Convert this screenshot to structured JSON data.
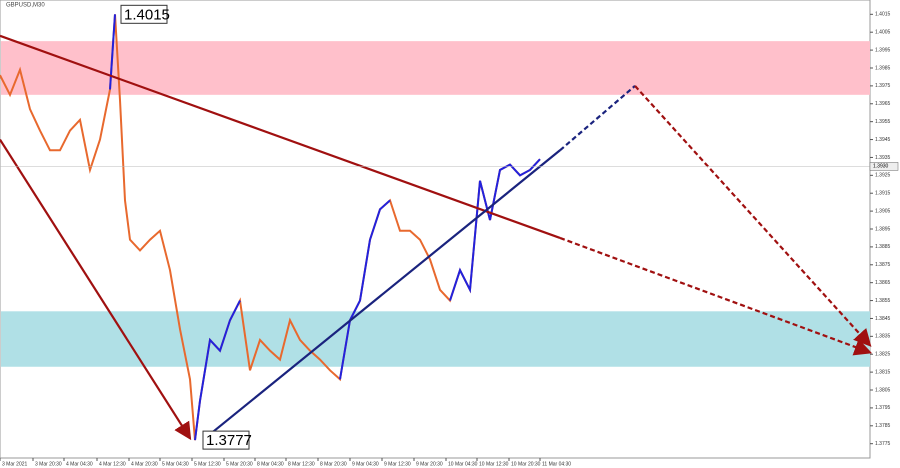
{
  "chart_data": {
    "type": "line",
    "title": "GBPUSD,M30",
    "x": [
      0,
      1,
      2,
      3,
      4,
      5,
      6,
      7,
      8,
      9,
      10,
      11,
      11.5,
      12,
      12.5,
      13,
      14,
      15,
      16,
      17,
      18,
      19,
      19.5,
      20,
      21,
      22,
      23,
      24,
      25,
      26,
      27,
      28,
      29,
      30,
      31,
      32,
      33,
      34,
      35,
      36,
      37,
      38,
      39,
      40,
      41,
      42,
      43,
      44,
      45,
      46,
      47,
      48,
      49,
      50,
      51,
      52,
      53,
      54
    ],
    "series": [
      {
        "color": "#e8692e",
        "values": [
          1.3981,
          1.397,
          1.3984,
          1.3962,
          1.395,
          1.3939,
          1.3939,
          1.395,
          1.3956,
          1.3928,
          1.3945,
          1.3973,
          1.4015,
          1.3967,
          1.3911,
          1.3889,
          1.3883,
          1.3889,
          1.3894,
          1.3872,
          1.3839,
          1.3811,
          1.3777,
          1.3799,
          1.3833,
          1.3827,
          1.3844,
          1.3855,
          1.3816,
          1.3833,
          1.3827,
          1.3822,
          1.3844,
          1.3833,
          1.3827,
          1.3822,
          1.3816,
          1.3811,
          1.3844,
          1.3855,
          1.3889,
          1.3906,
          1.3911,
          1.3894,
          1.3894,
          1.3889,
          1.3878,
          1.3861,
          1.3855,
          1.3872,
          1.3861,
          1.3922,
          1.39,
          1.3928,
          1.3931,
          1.3925,
          1.3928,
          1.3934
        ]
      },
      {
        "color": "#2222dd",
        "values": [
          null,
          null,
          null,
          null,
          null,
          null,
          null,
          null,
          null,
          null,
          null,
          1.3973,
          1.4015,
          null,
          null,
          null,
          null,
          null,
          null,
          null,
          null,
          null,
          1.3777,
          1.3799,
          1.3833,
          1.3827,
          1.3844,
          1.3855,
          null,
          null,
          null,
          null,
          null,
          null,
          null,
          null,
          null,
          1.3811,
          1.3844,
          1.3855,
          1.3889,
          1.3906,
          1.3911,
          null,
          null,
          null,
          null,
          null,
          1.3855,
          1.3872,
          1.3861,
          1.3922,
          1.39,
          1.3928,
          1.3931,
          1.3925,
          1.3928,
          1.3934
        ]
      }
    ],
    "xlim": [
      0,
      87
    ],
    "xticks": [
      {
        "value": 0,
        "label": "3 Mar 2021"
      },
      {
        "value": 3.3,
        "label": "3 Mar 20:30"
      },
      {
        "value": 6.4,
        "label": "4 Mar 04:30"
      },
      {
        "value": 9.7,
        "label": "4 Mar 12:30"
      },
      {
        "value": 12.9,
        "label": "4 Mar 20:30"
      },
      {
        "value": 16,
        "label": "5 Mar 04:30"
      },
      {
        "value": 19.2,
        "label": "5 Mar 12:30"
      },
      {
        "value": 22.4,
        "label": "5 Mar 20:30"
      },
      {
        "value": 25.5,
        "label": "8 Mar 04:30"
      },
      {
        "value": 28.6,
        "label": "8 Mar 12:30"
      },
      {
        "value": 31.8,
        "label": "8 Mar 20:30"
      },
      {
        "value": 35,
        "label": "9 Mar 04:30"
      },
      {
        "value": 38.2,
        "label": "9 Mar 12:30"
      },
      {
        "value": 41.4,
        "label": "9 Mar 20:30"
      },
      {
        "value": 44.6,
        "label": "10 Mar 04:30"
      },
      {
        "value": 47.7,
        "label": "10 Mar 12:30"
      },
      {
        "value": 50.9,
        "label": "10 Mar 20:30"
      },
      {
        "value": 54,
        "label": "11 Mar 04:30"
      }
    ],
    "ylim": [
      1.3767,
      1.4023
    ],
    "yticks": [
      1.4015,
      1.4005,
      1.3995,
      1.3985,
      1.3975,
      1.3965,
      1.3955,
      1.3945,
      1.3935,
      1.3925,
      1.3915,
      1.3905,
      1.3895,
      1.3885,
      1.3875,
      1.3865,
      1.3855,
      1.3845,
      1.3835,
      1.3825,
      1.3815,
      1.3805,
      1.3795,
      1.3785,
      1.3775
    ],
    "zones": [
      {
        "from": 1.4,
        "to": 1.397,
        "color": "#ffc0cb"
      },
      {
        "from": 1.3849,
        "to": 1.3818,
        "color": "#b0e0e6"
      }
    ],
    "trend_lines": [
      {
        "color": "#a01010",
        "dashed": false,
        "arrow": false,
        "points": [
          [
            0,
            1.4003
          ],
          [
            56,
            1.389
          ]
        ]
      },
      {
        "color": "#a01010",
        "dashed": true,
        "arrow": true,
        "points": [
          [
            56,
            1.389
          ],
          [
            87,
            1.3826
          ]
        ]
      },
      {
        "color": "#a01010",
        "dashed": false,
        "arrow": true,
        "points": [
          [
            0,
            1.3945
          ],
          [
            19,
            1.3778
          ]
        ]
      },
      {
        "color": "#1a237e",
        "dashed": false,
        "arrow": false,
        "points": [
          [
            20.5,
            1.3778
          ],
          [
            56,
            1.3939
          ]
        ]
      },
      {
        "color": "#1a237e",
        "dashed": true,
        "arrow": false,
        "points": [
          [
            56,
            1.3939
          ],
          [
            63.5,
            1.3975
          ]
        ]
      },
      {
        "color": "#a01010",
        "dashed": true,
        "arrow": true,
        "points": [
          [
            63.5,
            1.3975
          ],
          [
            87,
            1.383
          ]
        ]
      }
    ],
    "annotations": [
      {
        "x": 12.1,
        "value": 1.4015
      },
      {
        "x": 20.3,
        "value": 1.3777
      }
    ],
    "last_price": {
      "value": 1.393,
      "label": "1.3930"
    }
  }
}
